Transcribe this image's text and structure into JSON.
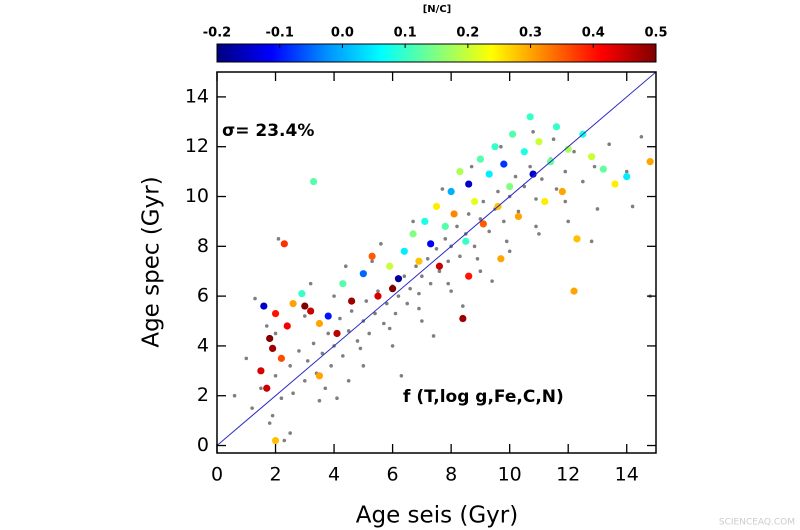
{
  "chart_data": {
    "type": "scatter",
    "x_label": "Age seis (Gyr)",
    "y_label": "Age spec (Gyr)",
    "annotations": [
      "σ= 23.4%",
      "f (T,log g,Fe,C,N)"
    ],
    "xlim": [
      0,
      15
    ],
    "ylim": [
      -0.3,
      15
    ],
    "xticks": [
      0,
      2,
      4,
      6,
      8,
      10,
      12,
      14
    ],
    "yticks": [
      0,
      2,
      4,
      6,
      8,
      10,
      12,
      14
    ],
    "colorbar": {
      "title": "[N/C]",
      "lim": [
        -0.2,
        0.5
      ],
      "ticks": [
        -0.2,
        -0.1,
        {
          "value": 0,
          "label": "0.0"
        },
        0.1,
        0.2,
        0.3,
        0.4,
        0.5
      ],
      "colormap": [
        "#000080",
        "#0000ff",
        "#0090ff",
        "#00ffff",
        "#80ff80",
        "#ffff00",
        "#ff8000",
        "#ff0000",
        "#800000"
      ]
    },
    "reference_line": {
      "x": [
        0,
        15
      ],
      "y": [
        0,
        15
      ],
      "color": "#2a2ac8"
    },
    "series": [
      {
        "color": "#7f7f7f",
        "x": [
          1.2,
          1.5,
          1.8,
          2.0,
          2.2,
          2.5,
          2.6,
          2.8,
          3.0,
          3.1,
          3.3,
          3.4,
          3.6,
          3.8,
          3.9,
          4.0,
          4.2,
          4.3,
          4.5,
          4.6,
          4.8,
          5.0,
          5.1,
          5.2,
          5.4,
          5.5,
          5.7,
          5.8,
          6.0,
          6.1,
          6.2,
          6.4,
          6.5,
          6.6,
          6.8,
          6.9,
          7.0,
          7.2,
          7.3,
          7.5,
          7.6,
          7.8,
          7.9,
          8.0,
          8.2,
          8.3,
          8.5,
          8.6,
          8.8,
          9.0,
          9.1,
          9.3,
          9.5,
          9.6,
          9.8,
          10.0,
          10.2,
          10.3,
          10.5,
          10.7,
          10.9,
          11.1,
          11.4,
          11.6,
          11.9,
          12.2,
          12.5,
          12.9,
          13.4,
          14.0,
          14.5,
          2.0,
          3.0,
          4.0,
          5.0,
          6.0,
          7.0,
          8.0,
          9.0,
          10.0,
          11.0,
          12.0,
          13.0,
          2.5,
          3.5,
          4.5,
          1.0,
          0.6,
          1.7,
          3.2,
          4.4,
          5.6,
          6.7,
          7.7,
          8.7,
          9.7,
          10.8,
          11.5,
          12.8,
          14.2,
          14.8,
          3.3,
          2.1,
          1.3,
          6.3,
          5.3,
          7.4,
          8.4,
          9.4,
          4.1,
          2.3,
          1.9,
          3.7,
          4.9,
          5.9,
          6.9,
          7.9,
          8.9,
          9.9,
          10.9,
          11.9
        ],
        "y": [
          1.5,
          2.3,
          0.9,
          2.8,
          1.9,
          3.2,
          2.1,
          3.8,
          2.6,
          3.4,
          4.1,
          2.9,
          3.7,
          4.5,
          3.2,
          4.0,
          5.1,
          3.6,
          4.6,
          5.4,
          4.2,
          5.0,
          5.8,
          4.5,
          5.3,
          6.2,
          4.9,
          5.7,
          6.4,
          5.3,
          6.0,
          6.8,
          5.7,
          6.3,
          7.2,
          6.1,
          6.8,
          7.5,
          6.5,
          7.9,
          7.0,
          8.3,
          7.4,
          8.0,
          8.8,
          7.6,
          8.5,
          9.3,
          8.0,
          9.1,
          9.8,
          8.6,
          9.5,
          10.2,
          9.0,
          10.0,
          10.8,
          9.4,
          10.4,
          11.2,
          9.9,
          10.7,
          11.5,
          10.3,
          11.0,
          11.8,
          10.6,
          11.2,
          12.1,
          11.0,
          12.4,
          4.5,
          5.2,
          6.0,
          3.2,
          4.0,
          5.0,
          6.2,
          7.0,
          7.8,
          8.5,
          9.0,
          9.5,
          0.5,
          1.8,
          2.6,
          3.5,
          2.0,
          4.8,
          6.5,
          7.2,
          8.1,
          9.0,
          10.3,
          11.2,
          12.0,
          12.6,
          12.3,
          8.2,
          9.6,
          6.0,
          10.6,
          8.3,
          5.9,
          2.8,
          7.4,
          4.4,
          5.6,
          6.6,
          1.9,
          0.2,
          1.2,
          2.3,
          3.9,
          4.7,
          5.5,
          6.5,
          7.5,
          8.2,
          8.8,
          9.8
        ]
      },
      {
        "x": [
          1.8,
          1.9,
          1.7,
          1.5,
          2.2,
          2.4,
          2.0,
          1.6,
          2.6,
          2.9,
          3.2,
          3.5,
          3.8,
          4.1,
          4.3,
          4.6,
          5.0,
          5.3,
          5.5,
          5.9,
          6.2,
          6.4,
          6.7,
          6.9,
          7.1,
          7.3,
          7.5,
          7.8,
          8.0,
          8.1,
          8.3,
          8.5,
          8.6,
          8.8,
          9.0,
          9.1,
          9.3,
          9.5,
          9.6,
          9.8,
          10.0,
          10.1,
          10.3,
          10.5,
          10.7,
          10.8,
          11.0,
          11.2,
          11.4,
          11.6,
          11.8,
          12.0,
          12.3,
          12.5,
          12.8,
          13.2,
          13.6,
          14.0,
          14.8,
          3.3,
          3.0,
          8.4,
          8.6,
          2.3,
          3.5,
          2.0,
          9.7,
          7.6,
          6.0,
          12.2
        ],
        "y": [
          4.3,
          3.9,
          2.3,
          3.0,
          3.5,
          4.8,
          5.3,
          5.6,
          5.7,
          6.1,
          5.4,
          4.9,
          5.2,
          4.5,
          6.5,
          5.8,
          6.9,
          7.6,
          6.0,
          7.2,
          6.7,
          7.8,
          8.5,
          7.4,
          9.0,
          8.1,
          9.6,
          8.8,
          10.2,
          9.3,
          11.0,
          8.2,
          10.5,
          9.8,
          11.5,
          8.9,
          10.9,
          12.0,
          9.6,
          11.3,
          10.4,
          12.5,
          9.2,
          11.8,
          13.2,
          10.9,
          12.2,
          9.8,
          11.4,
          12.8,
          10.2,
          11.9,
          8.3,
          12.5,
          11.6,
          11.1,
          10.5,
          10.8,
          11.4,
          10.6,
          5.6,
          5.1,
          6.8,
          8.1,
          2.8,
          0.2,
          7.5,
          7.2,
          6.3,
          6.2
        ],
        "c": [
          0.5,
          0.48,
          0.45,
          0.44,
          0.36,
          0.42,
          0.4,
          -0.15,
          0.3,
          0.1,
          0.45,
          0.3,
          -0.1,
          0.46,
          0.12,
          0.48,
          -0.05,
          0.35,
          0.44,
          0.2,
          -0.18,
          0.05,
          0.15,
          0.28,
          0.08,
          -0.12,
          0.25,
          0.12,
          0,
          0.32,
          0.18,
          0.1,
          -0.15,
          0.22,
          0.12,
          0.35,
          0.05,
          0.1,
          0.28,
          -0.08,
          0.15,
          0.12,
          0.3,
          0.08,
          0.1,
          -0.15,
          0.2,
          0.25,
          0.13,
          0.1,
          0.3,
          0.18,
          0.28,
          0.08,
          0.2,
          0.13,
          0.25,
          0.05,
          0.3,
          0.12,
          0.5,
          0.48,
          0.4,
          0.38,
          0.3,
          0.28,
          0.3,
          0.45,
          0.5,
          0.3
        ]
      }
    ]
  },
  "watermark": "SCIENCEAQ.COM"
}
